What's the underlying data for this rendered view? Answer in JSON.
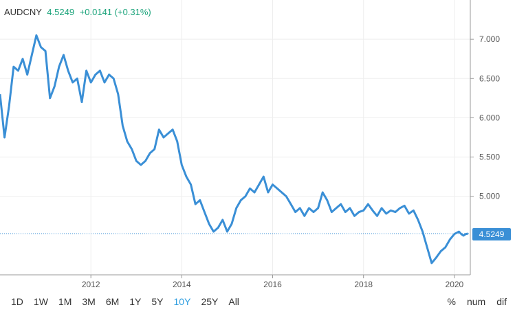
{
  "header": {
    "symbol": "AUDCNY",
    "price": "4.5249",
    "change": "+0.0141 (+0.31%)"
  },
  "price_tag": "4.5249",
  "range_buttons": [
    "1D",
    "1W",
    "1M",
    "3M",
    "6M",
    "1Y",
    "5Y",
    "10Y",
    "25Y",
    "All"
  ],
  "active_range": "10Y",
  "mode_buttons": [
    "%",
    "num",
    "dif"
  ],
  "colors": {
    "line": "#3a8fd6",
    "accent": "#2e9ee0",
    "positive": "#1aa37a"
  },
  "chart_data": {
    "type": "line",
    "x_ticks": [
      "2012",
      "2014",
      "2016",
      "2018",
      "2020"
    ],
    "y_ticks": [
      "7.000",
      "6.500",
      "6.000",
      "5.500",
      "5.000"
    ],
    "ylim": [
      4.0,
      7.5
    ],
    "last_value": 4.5249,
    "series": [
      {
        "x": [
          2010.0,
          2010.1,
          2010.2,
          2010.3,
          2010.4,
          2010.5,
          2010.6,
          2010.7,
          2010.8,
          2010.9,
          2011.0,
          2011.1,
          2011.2,
          2011.3,
          2011.4,
          2011.5,
          2011.6,
          2011.7,
          2011.8,
          2011.9,
          2012.0,
          2012.1,
          2012.2,
          2012.3,
          2012.4,
          2012.5,
          2012.6,
          2012.7,
          2012.8,
          2012.9,
          2013.0,
          2013.1,
          2013.2,
          2013.3,
          2013.4,
          2013.5,
          2013.6,
          2013.7,
          2013.8,
          2013.9,
          2014.0,
          2014.1,
          2014.2,
          2014.3,
          2014.4,
          2014.5,
          2014.6,
          2014.7,
          2014.8,
          2014.9,
          2015.0,
          2015.1,
          2015.2,
          2015.3,
          2015.4,
          2015.5,
          2015.6,
          2015.7,
          2015.8,
          2015.9,
          2016.0,
          2016.1,
          2016.2,
          2016.3,
          2016.4,
          2016.5,
          2016.6,
          2016.7,
          2016.8,
          2016.9,
          2017.0,
          2017.1,
          2017.2,
          2017.3,
          2017.4,
          2017.5,
          2017.6,
          2017.7,
          2017.8,
          2017.9,
          2018.0,
          2018.1,
          2018.2,
          2018.3,
          2018.4,
          2018.5,
          2018.6,
          2018.7,
          2018.8,
          2018.9,
          2019.0,
          2019.1,
          2019.2,
          2019.3,
          2019.4,
          2019.5,
          2019.6,
          2019.7,
          2019.8,
          2019.9,
          2020.0,
          2020.1,
          2020.15,
          2020.2,
          2020.25,
          2020.3
        ],
        "y": [
          6.3,
          5.75,
          6.15,
          6.65,
          6.6,
          6.75,
          6.55,
          6.8,
          7.05,
          6.9,
          6.85,
          6.25,
          6.4,
          6.65,
          6.8,
          6.6,
          6.45,
          6.5,
          6.2,
          6.6,
          6.45,
          6.55,
          6.6,
          6.45,
          6.55,
          6.5,
          6.3,
          5.9,
          5.7,
          5.6,
          5.45,
          5.4,
          5.45,
          5.55,
          5.6,
          5.85,
          5.75,
          5.8,
          5.85,
          5.7,
          5.4,
          5.25,
          5.15,
          4.9,
          4.95,
          4.8,
          4.65,
          4.55,
          4.6,
          4.7,
          4.55,
          4.65,
          4.85,
          4.95,
          5.0,
          5.1,
          5.05,
          5.15,
          5.25,
          5.05,
          5.15,
          5.1,
          5.05,
          5.0,
          4.9,
          4.8,
          4.85,
          4.75,
          4.85,
          4.8,
          4.85,
          5.05,
          4.95,
          4.8,
          4.85,
          4.9,
          4.8,
          4.85,
          4.75,
          4.8,
          4.82,
          4.9,
          4.82,
          4.75,
          4.85,
          4.78,
          4.82,
          4.8,
          4.85,
          4.88,
          4.78,
          4.82,
          4.7,
          4.55,
          4.35,
          4.15,
          4.22,
          4.3,
          4.35,
          4.45,
          4.52,
          4.55,
          4.52,
          4.5,
          4.52,
          4.5249
        ]
      }
    ]
  }
}
